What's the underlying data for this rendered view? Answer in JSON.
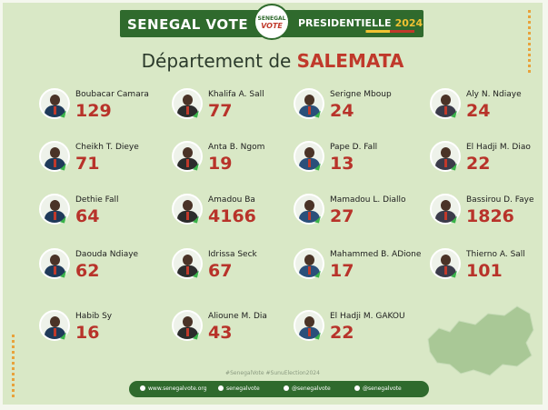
{
  "header": {
    "brand": "SENEGAL VOTE",
    "logo_top": "SENEGAL",
    "logo_bottom": "VOTE",
    "subtitle": "PRESIDENTIELLE",
    "year": "2024"
  },
  "title": {
    "prefix": "Département de",
    "department": "SALEMATA"
  },
  "candidates": [
    {
      "name": "Boubacar Camara",
      "votes": "129"
    },
    {
      "name": "Khalifa A. Sall",
      "votes": "77"
    },
    {
      "name": "Serigne Mboup",
      "votes": "24"
    },
    {
      "name": "Aly N. Ndiaye",
      "votes": "24"
    },
    {
      "name": "Cheikh T. Dieye",
      "votes": "71"
    },
    {
      "name": "Anta B. Ngom",
      "votes": "19"
    },
    {
      "name": "Pape D. Fall",
      "votes": "13"
    },
    {
      "name": "El Hadji M. Diao",
      "votes": "22"
    },
    {
      "name": "Dethie Fall",
      "votes": "64"
    },
    {
      "name": "Amadou Ba",
      "votes": "4166"
    },
    {
      "name": "Mamadou L. Diallo",
      "votes": "27"
    },
    {
      "name": "Bassirou D. Faye",
      "votes": "1826"
    },
    {
      "name": "Daouda Ndiaye",
      "votes": "62"
    },
    {
      "name": "Idrissa Seck",
      "votes": "67"
    },
    {
      "name": "Mahammed B. ADione",
      "votes": "17"
    },
    {
      "name": "Thierno A. Sall",
      "votes": "101"
    },
    {
      "name": "Habib Sy",
      "votes": "16"
    },
    {
      "name": "Alioune M. Dia",
      "votes": "43"
    },
    {
      "name": "El Hadji M. GAKOU",
      "votes": "22"
    }
  ],
  "hashtags": "#SenegalVote   #SunuElection2024",
  "footer": {
    "website": "www.senegalvote.org",
    "facebook": "senegalvote",
    "instagram": "@senegalvote",
    "twitter": "@senegalvote"
  },
  "colors": {
    "brand_green": "#2f6a2d",
    "vote_red": "#b8332a",
    "background": "#d9e8c6"
  }
}
